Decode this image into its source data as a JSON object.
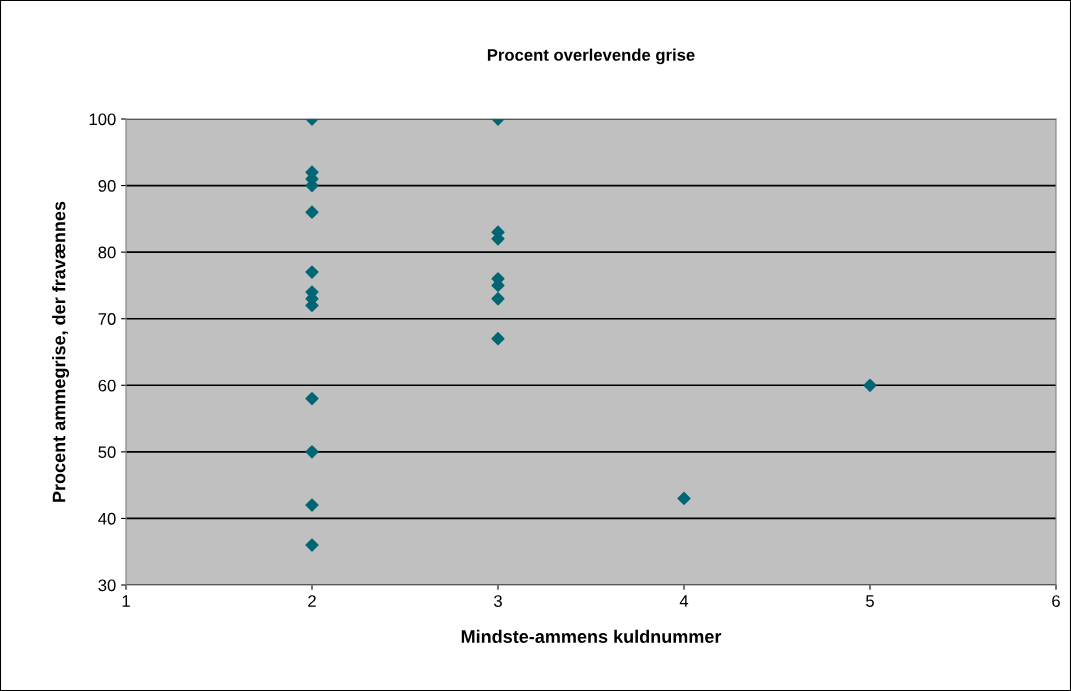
{
  "chart_data": {
    "type": "scatter",
    "title": "Procent overlevende grise",
    "xlabel": "Mindste-ammens kuldnummer",
    "ylabel": "Procent ammegrise, der fravænnes",
    "x": [
      2,
      2,
      2,
      2,
      2,
      2,
      2,
      2,
      2,
      2,
      2,
      2,
      2,
      3,
      3,
      3,
      3,
      3,
      3,
      3,
      4,
      5
    ],
    "series": [
      {
        "color": "#006674",
        "values": [
          100,
          92,
          91,
          90,
          86,
          77,
          74,
          73,
          72,
          58,
          50,
          42,
          36,
          100,
          83,
          82,
          76,
          75,
          73,
          67,
          43,
          60
        ]
      }
    ],
    "xlim": [
      1,
      6
    ],
    "xticks": [
      1,
      2,
      3,
      4,
      5,
      6
    ],
    "ylim": [
      30,
      100
    ],
    "yticks": [
      30,
      40,
      50,
      60,
      70,
      80,
      90,
      100
    ],
    "grid": "y",
    "marker": "diamond"
  }
}
